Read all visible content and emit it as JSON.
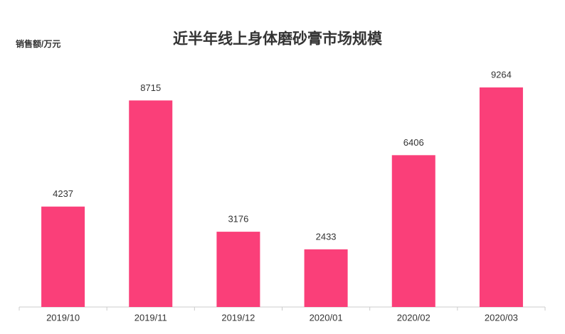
{
  "chart_data": {
    "type": "bar",
    "title": "近半年线上身体磨砂膏市场规模",
    "y_label": "销售额/万元",
    "categories": [
      "2019/10",
      "2019/11",
      "2019/12",
      "2020/01",
      "2020/02",
      "2020/03"
    ],
    "values": [
      4237,
      8715,
      3176,
      2433,
      6406,
      9264
    ],
    "color": "#fa3f79",
    "ylim": [
      0,
      10000
    ],
    "grid": false
  }
}
